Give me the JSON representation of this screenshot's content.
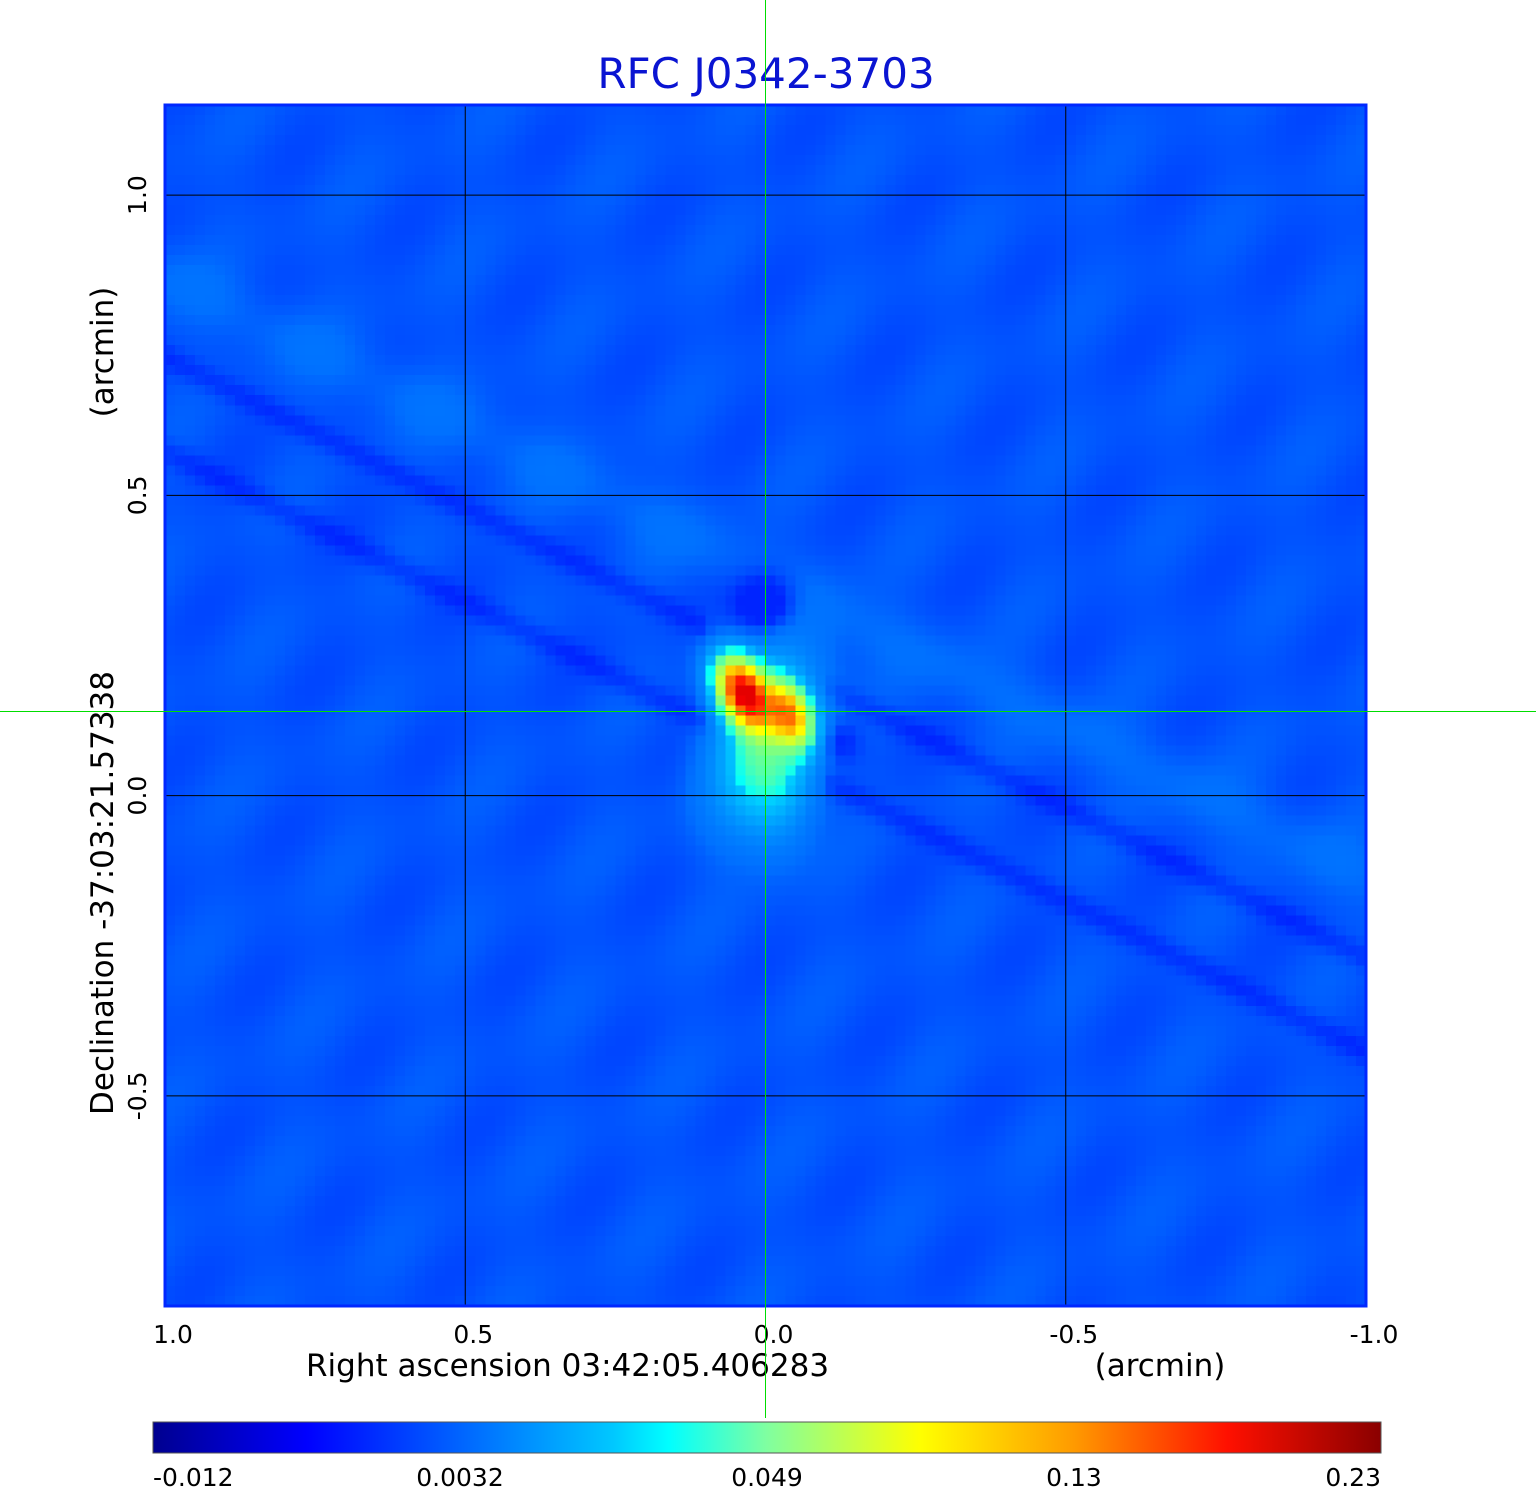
{
  "chart_data": {
    "type": "heatmap",
    "title": "RFC J0342-3703",
    "xlabel": "Right ascension  03:42:05.406283",
    "xunit": "(arcmin)",
    "ylabel": "Declination  -37:03:21.57338",
    "yunit": "(arcmin)",
    "xlim": [
      1.0,
      -1.0
    ],
    "ylim": [
      -0.85,
      1.15
    ],
    "x_ticks": [
      1.0,
      0.5,
      0.0,
      -0.5,
      -1.0
    ],
    "x_tick_labels": [
      "1.0",
      "0.5",
      "0.0",
      "-0.5",
      "-1.0"
    ],
    "y_ticks": [
      -0.5,
      0.0,
      0.5,
      1.0
    ],
    "y_tick_labels": [
      "-0.5",
      "0.0",
      "0.5",
      "1.0"
    ],
    "grid": true,
    "crosshair": {
      "x": 0.0,
      "y": 0.14
    },
    "colorbar": {
      "colormap": "jet",
      "range": [
        -0.012,
        0.23
      ],
      "tick_labels": [
        "-0.012",
        "0.0032",
        "0.049",
        "0.13",
        "0.23"
      ],
      "tick_fractions": [
        0.0,
        0.25,
        0.5,
        0.75,
        1.0
      ]
    },
    "features": [
      {
        "x": 0.035,
        "y": 0.17,
        "value": 0.23,
        "kind": "peak"
      },
      {
        "x": -0.04,
        "y": 0.14,
        "value": 0.15,
        "kind": "secondary-peak"
      },
      {
        "x": 0.0,
        "y": 0.32,
        "value": -0.012,
        "kind": "negative-sidelobe"
      },
      {
        "x": -0.12,
        "y": 0.09,
        "value": -0.006,
        "kind": "negative-sidelobe"
      }
    ],
    "background_value": 0.0
  },
  "colors": {
    "title": "#0a14d2",
    "grid": "#000000",
    "frame": "#0028ff",
    "crosshair": "#00dd00"
  }
}
